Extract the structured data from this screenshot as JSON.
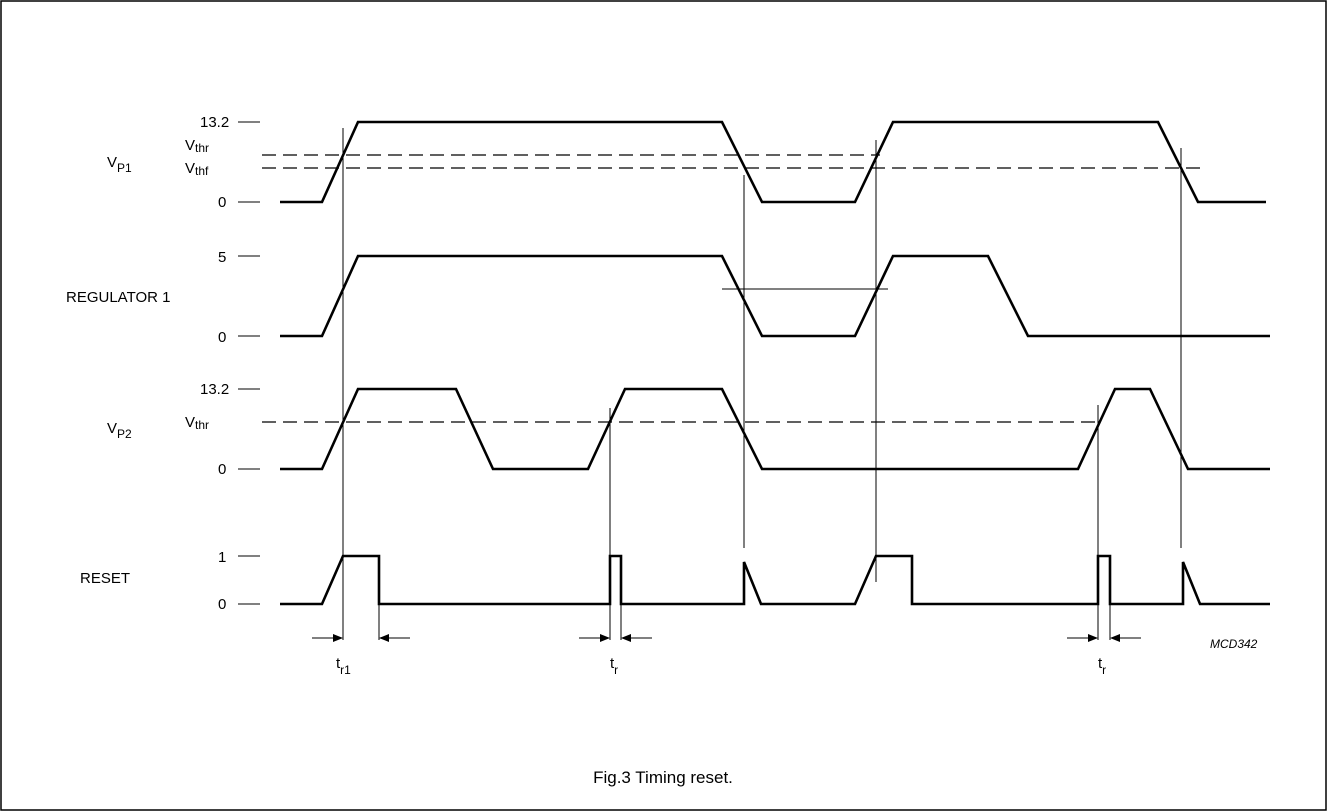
{
  "figure": {
    "caption": "Fig.3  Timing reset.",
    "code": "MCD342"
  },
  "signals": {
    "vp1": {
      "name": "V",
      "sub": "P1",
      "levels": [
        "13.2",
        "0"
      ],
      "vthr": {
        "main": "V",
        "sub": "thr"
      },
      "vthf": {
        "main": "V",
        "sub": "thf"
      }
    },
    "reg1": {
      "name": "REGULATOR 1",
      "levels": [
        "5",
        "0"
      ]
    },
    "vp2": {
      "name": "V",
      "sub": "P2",
      "levels": [
        "13.2",
        "0"
      ],
      "vthr": {
        "main": "V",
        "sub": "thr"
      }
    },
    "reset": {
      "name": "RESET",
      "levels": [
        "1",
        "0"
      ]
    }
  },
  "timing": {
    "tr1": {
      "main": "t",
      "sub": "r1"
    },
    "tr_a": {
      "main": "t",
      "sub": "r"
    },
    "tr_b": {
      "main": "t",
      "sub": "r"
    }
  }
}
